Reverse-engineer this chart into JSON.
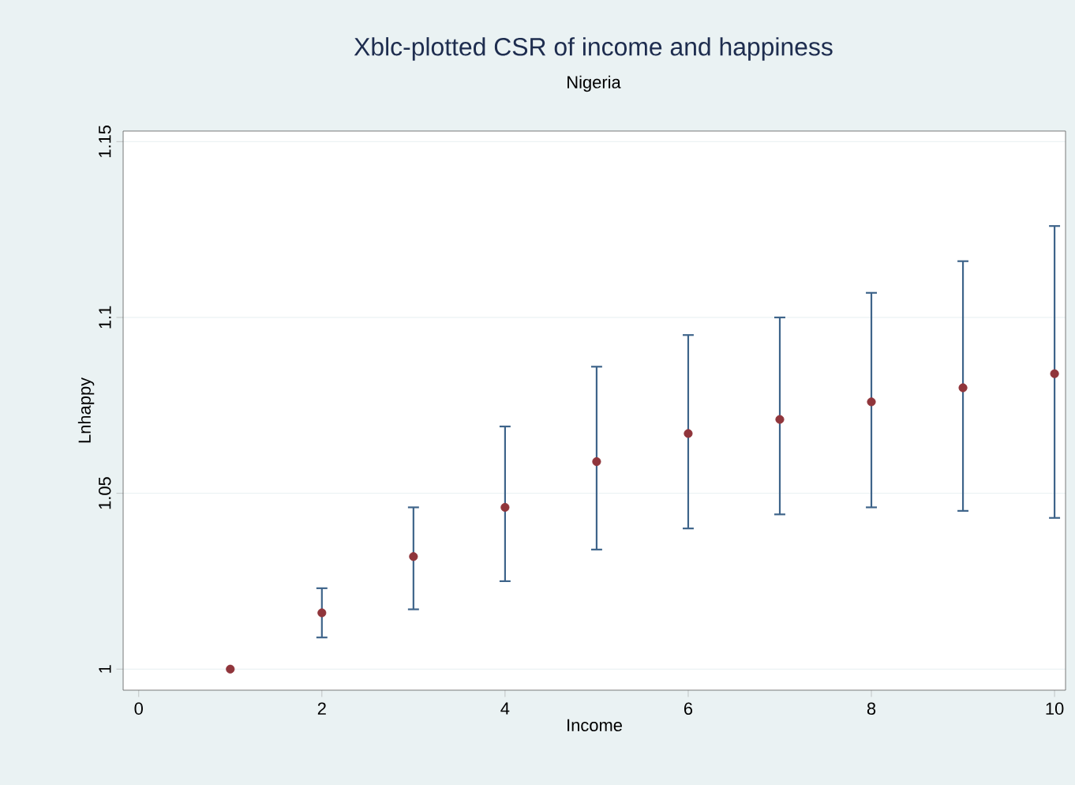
{
  "chart_data": {
    "type": "scatter",
    "title": "Xblc-plotted CSR of income and happiness",
    "subtitle": "Nigeria",
    "xlabel": "Income",
    "ylabel": "Lnhappy",
    "x": [
      1,
      2,
      3,
      4,
      5,
      6,
      7,
      8,
      9,
      10
    ],
    "series": [
      {
        "color": "#90353b",
        "values": [
          1.0,
          1.016,
          1.032,
          1.046,
          1.059,
          1.067,
          1.071,
          1.076,
          1.08,
          1.084
        ],
        "errors": [
          null,
          [
            1.009,
            1.023
          ],
          [
            1.017,
            1.046
          ],
          [
            1.025,
            1.069
          ],
          [
            1.034,
            1.086
          ],
          [
            1.04,
            1.095
          ],
          [
            1.044,
            1.1
          ],
          [
            1.046,
            1.107
          ],
          [
            1.045,
            1.116
          ],
          [
            1.043,
            1.126
          ]
        ]
      }
    ],
    "xlim": [
      -0.17,
      10.12
    ],
    "ylim": [
      0.994,
      1.153
    ],
    "xticks": [
      0,
      2,
      4,
      6,
      8,
      10
    ],
    "yticks": [
      1,
      1.05,
      1.1,
      1.15
    ],
    "grid": "y"
  }
}
